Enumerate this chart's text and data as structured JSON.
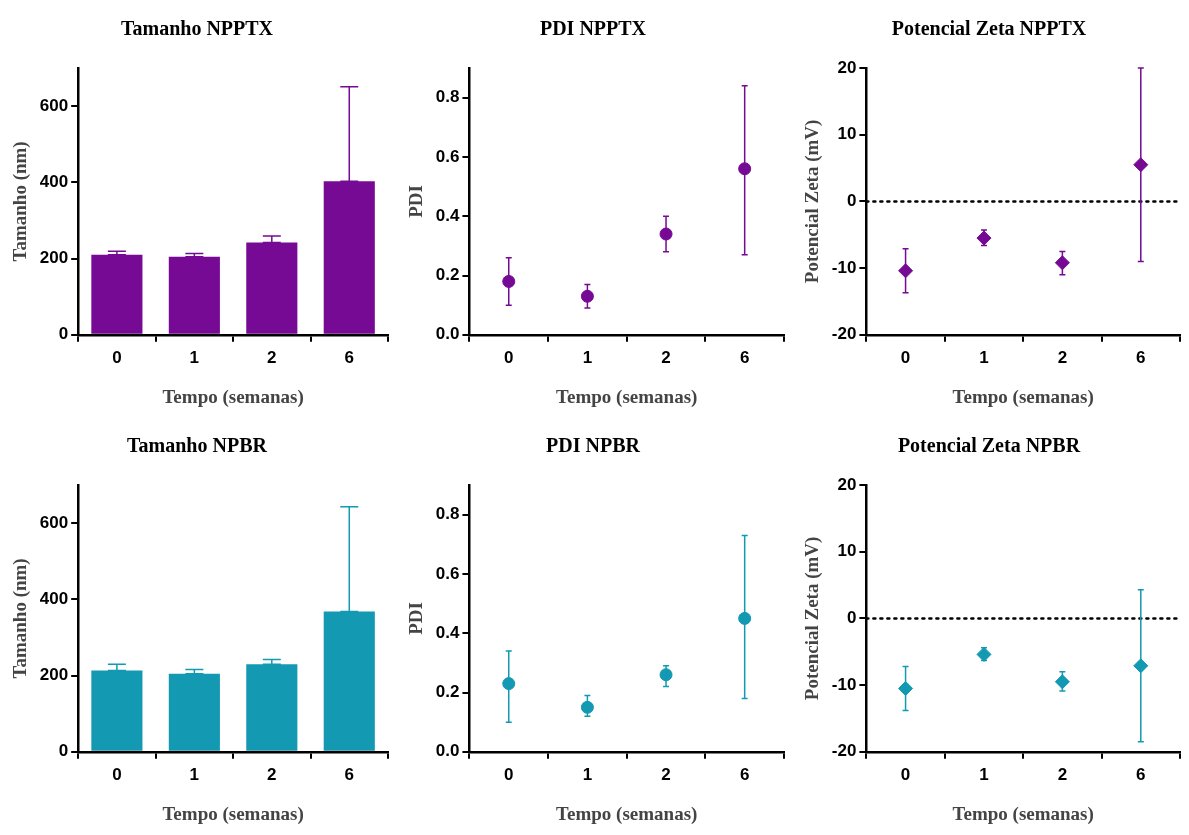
{
  "chart_data": [
    {
      "type": "bar",
      "title": "Tamanho NPPTX",
      "xlabel": "Tempo (semanas)",
      "ylabel": "Tamanho (nm)",
      "categories": [
        "0",
        "1",
        "2",
        "6"
      ],
      "series": [
        {
          "color": "#760a94",
          "values": [
            210,
            205,
            242,
            403
          ],
          "errors": [
            [
              210,
              219
            ],
            [
              205,
              213
            ],
            [
              242,
              259
            ],
            [
              403,
              651
            ]
          ]
        }
      ],
      "ylim": [
        0,
        700
      ],
      "yticks": [
        0,
        200,
        400,
        600
      ]
    },
    {
      "type": "scatter",
      "title": "PDI NPPTX",
      "xlabel": "Tempo (semanas)",
      "ylabel": "PDI",
      "categories": [
        "0",
        "1",
        "2",
        "6"
      ],
      "marker": "circle",
      "series": [
        {
          "color": "#760a94",
          "values": [
            0.18,
            0.13,
            0.34,
            0.56
          ],
          "errors": [
            [
              0.1,
              0.26
            ],
            [
              0.09,
              0.17
            ],
            [
              0.28,
              0.4
            ],
            [
              0.27,
              0.84
            ]
          ]
        }
      ],
      "ylim": [
        0,
        0.9
      ],
      "yticks": [
        {
          "value": 0,
          "label": "0.0"
        },
        0.2,
        0.4,
        0.6,
        0.8
      ]
    },
    {
      "type": "scatter",
      "title": "Potencial Zeta NPPTX",
      "xlabel": "Tempo (semanas)",
      "ylabel": "Potencial Zeta (mV)",
      "categories": [
        "0",
        "1",
        "2",
        "6"
      ],
      "marker": "diamond",
      "series": [
        {
          "color": "#760a94",
          "values": [
            -10.4,
            -5.5,
            -9.2,
            5.5
          ],
          "errors": [
            [
              -13.7,
              -7.1
            ],
            [
              -6.6,
              -4.3
            ],
            [
              -11.0,
              -7.5
            ],
            [
              -9.0,
              20.0
            ]
          ]
        }
      ],
      "ylim": [
        -20,
        20
      ],
      "yticks": [
        -20,
        -10,
        0,
        10,
        20
      ],
      "ref_lines": [
        {
          "axis": "y",
          "value": 0,
          "line_style": "dotted",
          "color": "#000000"
        }
      ]
    },
    {
      "type": "bar",
      "title": "Tamanho NPBR",
      "xlabel": "Tempo (semanas)",
      "ylabel": "Tamanho (nm)",
      "categories": [
        "0",
        "1",
        "2",
        "6"
      ],
      "series": [
        {
          "color": "#1399b2",
          "values": [
            213,
            205,
            230,
            368
          ],
          "errors": [
            [
              213,
              230
            ],
            [
              205,
              216
            ],
            [
              230,
              242
            ],
            [
              368,
              643
            ]
          ]
        }
      ],
      "ylim": [
        0,
        700
      ],
      "yticks": [
        0,
        200,
        400,
        600
      ]
    },
    {
      "type": "scatter",
      "title": "PDI NPBR",
      "xlabel": "Tempo (semanas)",
      "ylabel": "PDI",
      "categories": [
        "0",
        "1",
        "2",
        "6"
      ],
      "marker": "circle",
      "series": [
        {
          "color": "#1399b2",
          "values": [
            0.23,
            0.15,
            0.26,
            0.45
          ],
          "errors": [
            [
              0.1,
              0.34
            ],
            [
              0.12,
              0.19
            ],
            [
              0.22,
              0.29
            ],
            [
              0.18,
              0.73
            ]
          ]
        }
      ],
      "ylim": [
        0,
        0.9
      ],
      "yticks": [
        {
          "value": 0,
          "label": "0.0"
        },
        0.2,
        0.4,
        0.6,
        0.8
      ]
    },
    {
      "type": "scatter",
      "title": "Potencial Zeta NPBR",
      "xlabel": "Tempo (semanas)",
      "ylabel": "Potencial Zeta (mV)",
      "categories": [
        "0",
        "1",
        "2",
        "6"
      ],
      "marker": "diamond",
      "series": [
        {
          "color": "#1399b2",
          "values": [
            -10.5,
            -5.4,
            -9.5,
            -7.1
          ],
          "errors": [
            [
              -13.8,
              -7.2
            ],
            [
              -6.3,
              -4.4
            ],
            [
              -10.9,
              -8.0
            ],
            [
              -18.5,
              4.3
            ]
          ]
        }
      ],
      "ylim": [
        -20,
        20
      ],
      "yticks": [
        -20,
        -10,
        0,
        10,
        20
      ],
      "ref_lines": [
        {
          "axis": "y",
          "value": 0,
          "line_style": "dotted",
          "color": "#000000"
        }
      ]
    }
  ]
}
